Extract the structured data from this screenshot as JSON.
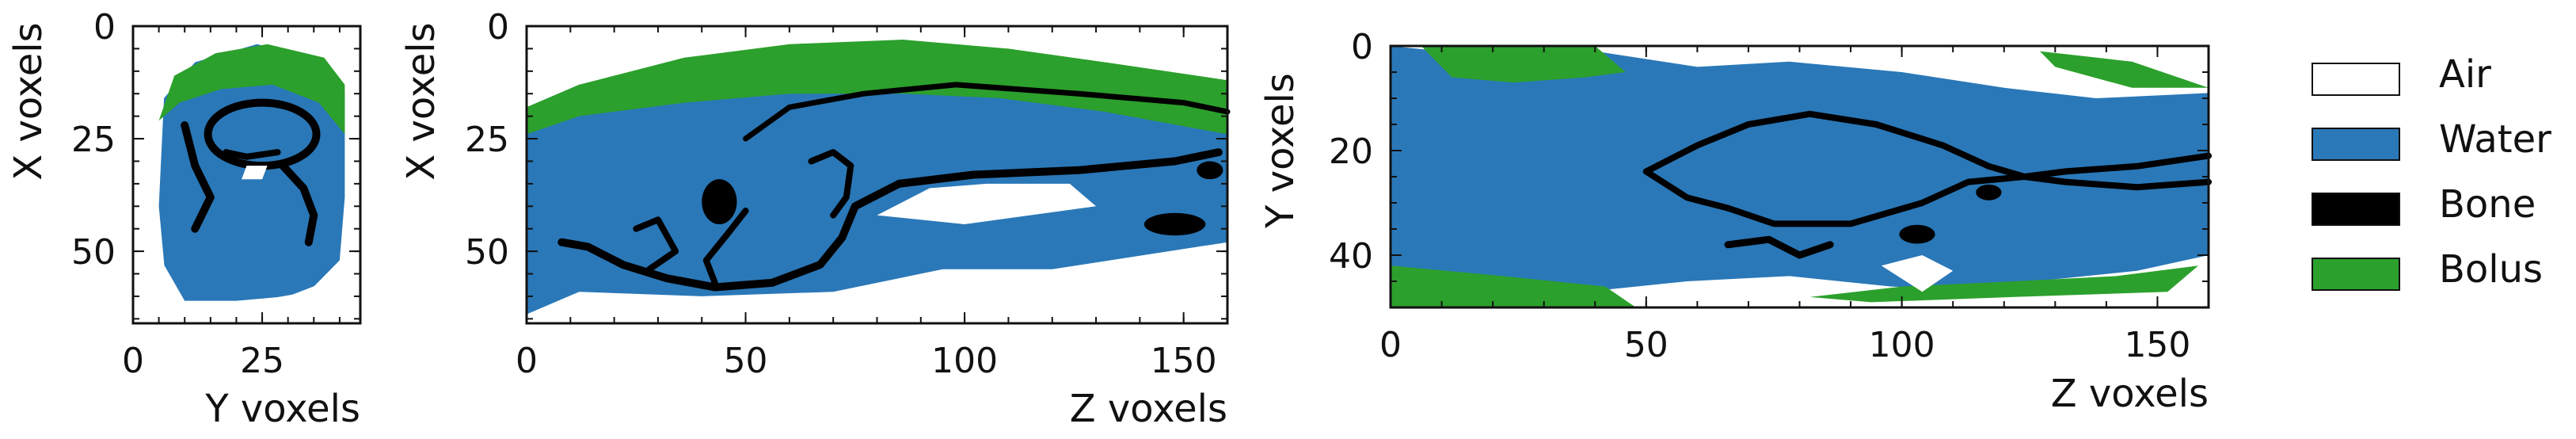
{
  "chart_data": [
    {
      "type": "heatmap",
      "view": "Y-X slice",
      "xlabel": "Y voxels",
      "ylabel": "X voxels",
      "xlim": [
        0,
        44
      ],
      "ylim": [
        0,
        66
      ],
      "xticks": [
        0,
        25
      ],
      "yticks": [
        0,
        25,
        50
      ]
    },
    {
      "type": "heatmap",
      "view": "Z-X slice",
      "xlabel": "Z voxels",
      "ylabel": "X voxels",
      "xlim": [
        0,
        160
      ],
      "ylim": [
        0,
        66
      ],
      "xticks": [
        0,
        50,
        100,
        150
      ],
      "yticks": [
        0,
        25,
        50
      ]
    },
    {
      "type": "heatmap",
      "view": "Z-Y slice",
      "xlabel": "Z voxels",
      "ylabel": "Y voxels",
      "xlim": [
        0,
        160
      ],
      "ylim": [
        0,
        50
      ],
      "xticks": [
        0,
        50,
        100,
        150
      ],
      "yticks": [
        0,
        20,
        40
      ]
    }
  ],
  "legend": [
    {
      "label": "Air",
      "color": "#ffffff"
    },
    {
      "label": "Water",
      "color": "#2a78b8"
    },
    {
      "label": "Bone",
      "color": "#000000"
    },
    {
      "label": "Bolus",
      "color": "#2ca02c"
    }
  ]
}
